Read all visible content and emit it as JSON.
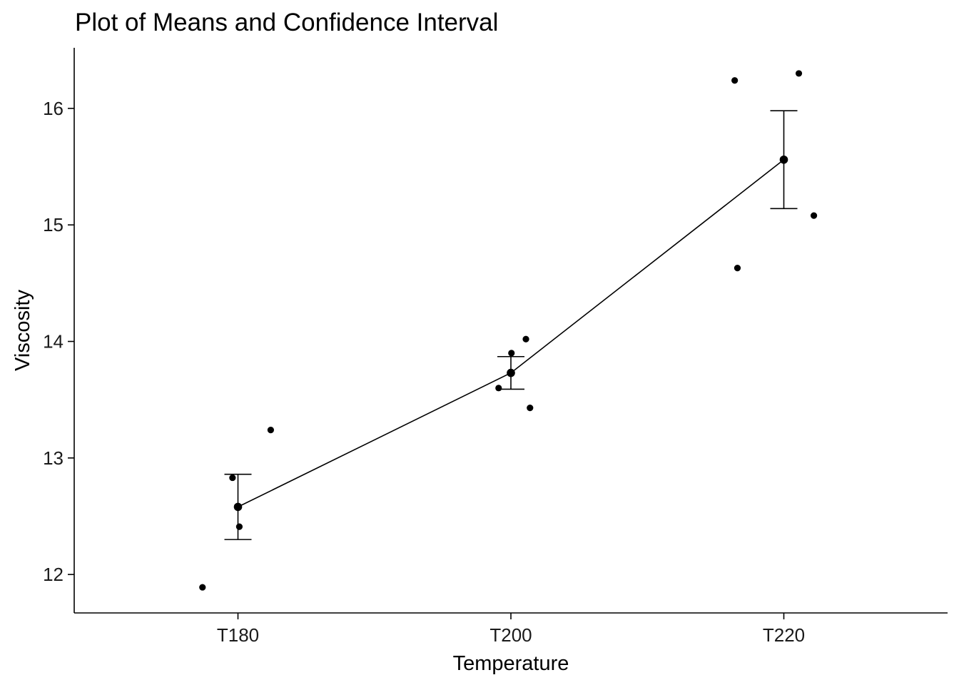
{
  "chart_data": {
    "type": "scatter",
    "title": "Plot of Means and Confidence Interval",
    "xlabel": "Temperature",
    "ylabel": "Viscosity",
    "categories": [
      "T180",
      "T200",
      "T220"
    ],
    "yticks": [
      12,
      13,
      14,
      15,
      16
    ],
    "ylim": [
      11.67,
      16.52
    ],
    "grid": false,
    "observations": [
      {
        "category": "T180",
        "jitter": -0.13,
        "y": 11.89
      },
      {
        "category": "T180",
        "jitter": -0.02,
        "y": 12.83
      },
      {
        "category": "T180",
        "jitter": 0.005,
        "y": 12.41
      },
      {
        "category": "T180",
        "jitter": 0.12,
        "y": 13.24
      },
      {
        "category": "T200",
        "jitter": -0.045,
        "y": 13.6
      },
      {
        "category": "T200",
        "jitter": 0.002,
        "y": 13.9
      },
      {
        "category": "T200",
        "jitter": 0.055,
        "y": 14.02
      },
      {
        "category": "T200",
        "jitter": 0.07,
        "y": 13.43
      },
      {
        "category": "T220",
        "jitter": -0.18,
        "y": 16.24
      },
      {
        "category": "T220",
        "jitter": -0.17,
        "y": 14.63
      },
      {
        "category": "T220",
        "jitter": 0.055,
        "y": 16.3
      },
      {
        "category": "T220",
        "jitter": 0.11,
        "y": 15.08
      }
    ],
    "means": [
      {
        "category": "T180",
        "mean": 12.58,
        "ci_low": 12.3,
        "ci_high": 12.86
      },
      {
        "category": "T200",
        "mean": 13.73,
        "ci_low": 13.59,
        "ci_high": 13.87
      },
      {
        "category": "T220",
        "mean": 15.56,
        "ci_low": 15.14,
        "ci_high": 15.98
      }
    ]
  }
}
